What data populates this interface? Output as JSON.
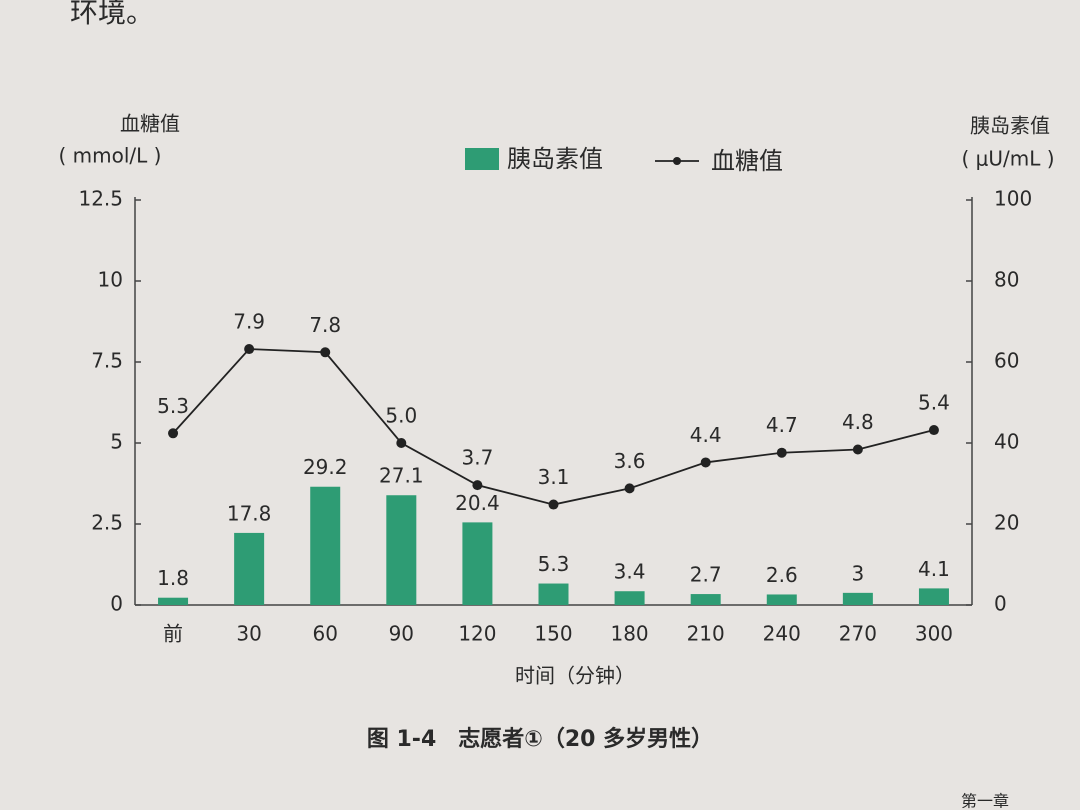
{
  "page_text": {
    "top": "环境。",
    "caption": "图 1-4　志愿者①（20 多岁男性）",
    "footer": "第一章"
  },
  "chart_data": {
    "type": "bar-line",
    "ylabel": "血糖值",
    "yunit": "( mmol/L )",
    "y2label": "胰岛素值",
    "y2unit": "( μU/mL )",
    "xlabel": "时间（分钟）",
    "categories": [
      "前",
      "30",
      "60",
      "90",
      "120",
      "150",
      "180",
      "210",
      "240",
      "270",
      "300"
    ],
    "series": [
      {
        "name": "胰岛素值",
        "type": "bar",
        "axis": "y2",
        "color": "#2e9c74",
        "values": [
          1.8,
          17.8,
          29.2,
          27.1,
          20.4,
          5.3,
          3.4,
          2.7,
          2.6,
          3,
          4.1
        ]
      },
      {
        "name": "血糖值",
        "type": "line",
        "color": "#222222",
        "values": [
          5.3,
          7.9,
          7.8,
          5.0,
          3.7,
          3.1,
          3.6,
          4.4,
          4.7,
          4.8,
          5.4
        ],
        "value_labels": [
          "5.3",
          "7.9",
          "7.8",
          "5.0",
          "3.7",
          "3.1",
          "3.6",
          "4.4",
          "4.7",
          "4.8",
          "5.4"
        ]
      }
    ],
    "ylim": [
      0,
      12.5
    ],
    "yticks": [
      0,
      2.5,
      5,
      7.5,
      10,
      12.5
    ],
    "y2lim": [
      0,
      100
    ],
    "y2ticks": [
      0,
      20,
      40,
      60,
      80,
      100
    ]
  }
}
